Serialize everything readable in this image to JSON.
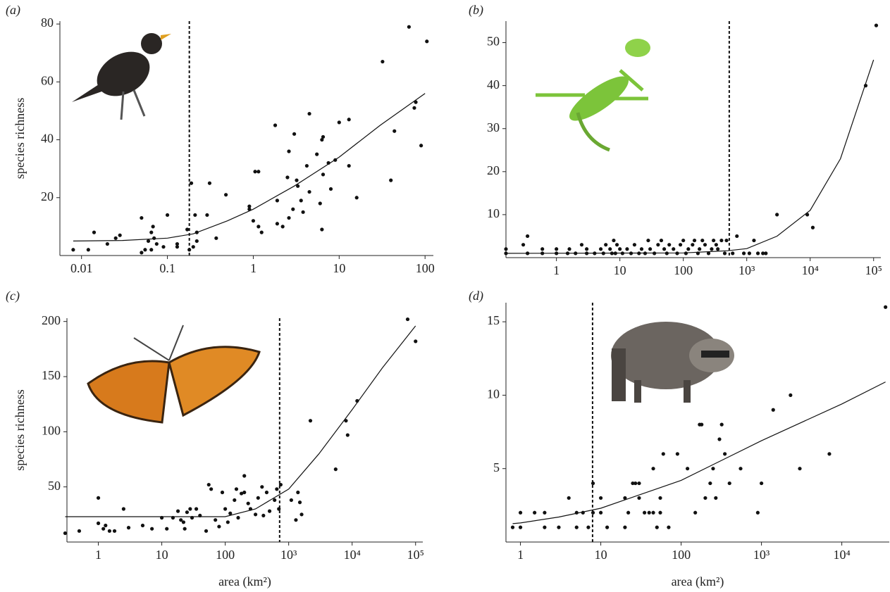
{
  "chart_data": [
    {
      "type": "scatter",
      "label": "(a)",
      "ylabel": "species richness",
      "log_x": true,
      "color": "#111111",
      "xlim": [
        0.0056,
        125
      ],
      "ylim": [
        0,
        81
      ],
      "xticks": [
        0.01,
        0.1,
        1,
        10,
        100
      ],
      "yticks": [
        20,
        40,
        60,
        80
      ],
      "threshold": 0.18,
      "x": [
        0.008,
        0.012,
        0.014,
        0.02,
        0.025,
        0.028,
        0.05,
        0.05,
        0.055,
        0.06,
        0.065,
        0.068,
        0.07,
        0.075,
        0.065,
        0.09,
        0.1,
        0.13,
        0.13,
        0.17,
        0.18,
        0.19,
        0.2,
        0.21,
        0.22,
        0.22,
        0.29,
        0.31,
        0.37,
        0.48,
        0.9,
        0.9,
        1.0,
        1.05,
        1.15,
        1.15,
        1.25,
        1.8,
        1.9,
        1.9,
        2.2,
        2.5,
        2.6,
        2.6,
        2.9,
        3.0,
        3.2,
        3.3,
        3.6,
        3.8,
        4.2,
        4.5,
        4.5,
        5.5,
        6,
        6.3,
        6.3,
        6.5,
        6.5,
        7.5,
        8,
        9,
        10,
        13,
        13,
        16,
        32,
        40,
        44,
        65,
        75,
        78,
        90,
        105
      ],
      "values": [
        2,
        2,
        8,
        4,
        6,
        7,
        13,
        1,
        2,
        5,
        8,
        10,
        6,
        4,
        2,
        3,
        14,
        3,
        4,
        9,
        2,
        25,
        3,
        14,
        8,
        5,
        14,
        25,
        6,
        21,
        17,
        16,
        12,
        29,
        29,
        10,
        8,
        45,
        19,
        11,
        10,
        27,
        13,
        36,
        16,
        42,
        26,
        24,
        19,
        15,
        31,
        49,
        22,
        35,
        18,
        9,
        40,
        41,
        28,
        32,
        23,
        33,
        46,
        47,
        31,
        20,
        67,
        26,
        43,
        79,
        51,
        53,
        38,
        74
      ],
      "fit": {
        "x": [
          0.008,
          0.03,
          0.1,
          0.2,
          0.5,
          1,
          3,
          10,
          30,
          100
        ],
        "values": [
          5,
          5.2,
          6,
          7.5,
          12,
          16,
          24,
          34,
          45,
          56
        ]
      }
    },
    {
      "type": "scatter",
      "label": "(b)",
      "log_x": true,
      "color": "#111111",
      "xlim": [
        0.16,
        130000
      ],
      "ylim": [
        0,
        55
      ],
      "xticks": [
        1,
        10,
        100,
        {
          "value": 1000,
          "label": "10³"
        },
        {
          "value": 10000,
          "label": "10⁴"
        },
        {
          "value": 100000,
          "label": "10⁵"
        }
      ],
      "yticks": [
        10,
        20,
        30,
        40,
        50
      ],
      "threshold": 530,
      "x": [
        0.16,
        0.16,
        0.3,
        0.35,
        0.35,
        0.6,
        0.6,
        1,
        1,
        1.5,
        1.6,
        2,
        2.5,
        3,
        3,
        4,
        5,
        5.5,
        6,
        7,
        7.5,
        8,
        8.5,
        9,
        10,
        11,
        13,
        15,
        17,
        20,
        22,
        25,
        28,
        30,
        35,
        40,
        45,
        50,
        55,
        60,
        70,
        80,
        90,
        100,
        110,
        120,
        140,
        150,
        170,
        180,
        200,
        220,
        250,
        280,
        300,
        330,
        350,
        400,
        450,
        480,
        600,
        700,
        900,
        1100,
        1300,
        1500,
        1800,
        2000,
        3000,
        9000,
        11000,
        75000,
        110000
      ],
      "values": [
        1,
        2,
        3,
        5,
        1,
        1,
        2,
        1,
        2,
        1,
        2,
        1,
        3,
        1,
        2,
        1,
        2,
        1,
        3,
        2,
        1,
        4,
        1,
        3,
        2,
        1,
        2,
        1,
        3,
        1,
        2,
        1,
        4,
        2,
        1,
        3,
        4,
        2,
        1,
        3,
        2,
        1,
        3,
        4,
        1,
        2,
        3,
        4,
        1,
        2,
        4,
        3,
        1,
        2,
        4,
        3,
        2,
        4,
        1,
        4,
        1,
        5,
        1,
        1,
        4,
        1,
        1,
        1,
        10,
        10,
        7,
        40,
        54
      ],
      "fit": {
        "x": [
          0.16,
          100,
          500,
          1000,
          3000,
          10000,
          30000,
          100000
        ],
        "values": [
          1,
          1.1,
          1.6,
          2.1,
          5,
          11,
          23,
          46
        ]
      }
    },
    {
      "type": "scatter",
      "label": "(c)",
      "ylabel": "species richness",
      "xlabel": "area (km²)",
      "log_x": true,
      "color": "#111111",
      "xlim": [
        0.32,
        130000
      ],
      "ylim": [
        0,
        203
      ],
      "xticks": [
        1,
        10,
        100,
        {
          "value": 1000,
          "label": "10³"
        },
        {
          "value": 10000,
          "label": "10⁴"
        },
        {
          "value": 100000,
          "label": "10⁵"
        }
      ],
      "yticks": [
        50,
        100,
        150,
        200
      ],
      "threshold": 720,
      "x": [
        0.3,
        0.5,
        1,
        1,
        1.2,
        1.3,
        1.5,
        1.8,
        2.5,
        3,
        5,
        7,
        10,
        12,
        15,
        18,
        20,
        22,
        23,
        25,
        28,
        30,
        35,
        40,
        50,
        55,
        60,
        70,
        80,
        90,
        100,
        110,
        120,
        140,
        150,
        160,
        180,
        200,
        200,
        230,
        250,
        300,
        330,
        380,
        400,
        450,
        500,
        600,
        650,
        700,
        750,
        1100,
        1300,
        1400,
        1500,
        1600,
        2200,
        5500,
        8000,
        8500,
        12000,
        75000,
        100000
      ],
      "values": [
        8,
        10,
        40,
        17,
        12,
        15,
        10,
        10,
        30,
        13,
        15,
        12,
        22,
        12,
        22,
        28,
        20,
        18,
        12,
        27,
        30,
        22,
        30,
        24,
        10,
        52,
        48,
        20,
        14,
        45,
        30,
        18,
        26,
        38,
        48,
        22,
        44,
        60,
        45,
        35,
        30,
        25,
        40,
        50,
        24,
        45,
        28,
        38,
        48,
        30,
        52,
        38,
        20,
        45,
        36,
        25,
        110,
        66,
        110,
        97,
        128,
        202,
        182
      ],
      "fit": {
        "x": [
          0.3,
          100,
          300,
          1000,
          3000,
          10000,
          30000,
          100000
        ],
        "values": [
          23,
          23,
          30,
          48,
          80,
          120,
          158,
          196
        ]
      }
    },
    {
      "type": "scatter",
      "label": "(d)",
      "xlabel": "area (km²)",
      "log_x": true,
      "color": "#111111",
      "xlim": [
        0.66,
        39000
      ],
      "ylim": [
        0,
        16.3
      ],
      "xticks": [
        1,
        10,
        100,
        {
          "value": 1000,
          "label": "10³"
        },
        {
          "value": 10000,
          "label": "10⁴"
        }
      ],
      "yticks": [
        5,
        10,
        15
      ],
      "threshold": 7.9,
      "x": [
        0.8,
        1,
        1,
        1.5,
        2,
        2,
        3,
        4,
        5,
        5,
        6,
        7,
        8,
        8,
        10,
        10,
        12,
        20,
        20,
        22,
        25,
        27,
        30,
        30,
        35,
        40,
        45,
        45,
        50,
        55,
        55,
        60,
        70,
        90,
        120,
        150,
        170,
        180,
        200,
        230,
        250,
        270,
        300,
        320,
        350,
        400,
        550,
        900,
        1000,
        1400,
        2300,
        3000,
        7000,
        35000
      ],
      "values": [
        1,
        1,
        2,
        2,
        2,
        1,
        1,
        3,
        1,
        2,
        2,
        1,
        2,
        4,
        2,
        3,
        1,
        1,
        3,
        2,
        4,
        4,
        3,
        4,
        2,
        2,
        5,
        2,
        1,
        3,
        2,
        6,
        1,
        6,
        5,
        2,
        8,
        8,
        3,
        4,
        5,
        3,
        7,
        8,
        6,
        4,
        5,
        2,
        4,
        9,
        10,
        5,
        6,
        16
      ],
      "fit": {
        "x": [
          0.8,
          1,
          3,
          10,
          100,
          1000,
          10000,
          35000
        ],
        "values": [
          1.25,
          1.3,
          1.7,
          2.3,
          4.2,
          6.9,
          9.4,
          10.9
        ]
      }
    }
  ]
}
